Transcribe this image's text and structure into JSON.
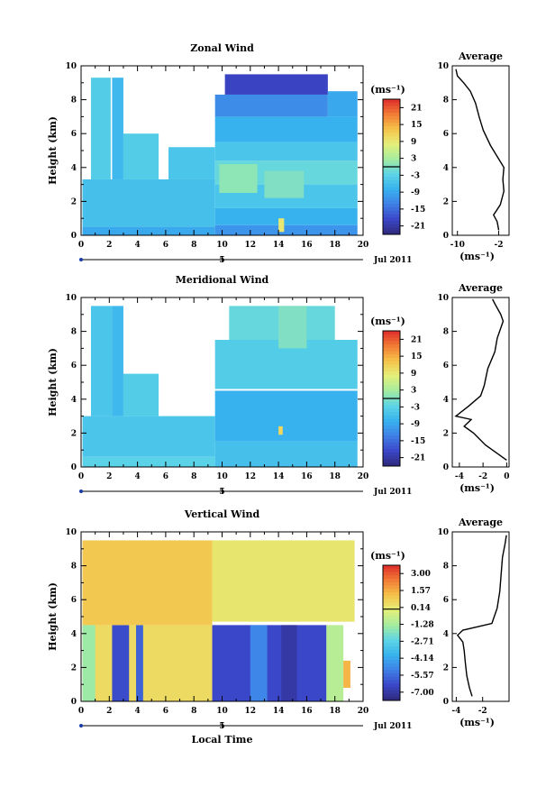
{
  "figure": {
    "panels": [
      {
        "title": "Zonal Wind",
        "ylabel": "Height (km)",
        "unit_label": "(ms⁻¹)",
        "colorbar_ticks": [
          "21",
          "15",
          "9",
          "3",
          "-3",
          "-9",
          "-15",
          "-21"
        ],
        "date_label": "Jul 2011",
        "date_tick": "5",
        "avg_title": "Average",
        "avg_unit": "(ms⁻¹)"
      },
      {
        "title": "Meridional Wind",
        "ylabel": "Height (km)",
        "unit_label": "(ms⁻¹)",
        "colorbar_ticks": [
          "21",
          "15",
          "9",
          "3",
          "-3",
          "-9",
          "-15",
          "-21"
        ],
        "date_label": "Jul 2011",
        "date_tick": "5",
        "avg_title": "Average",
        "avg_unit": "(ms⁻¹)"
      },
      {
        "title": "Vertical Wind",
        "ylabel": "Height (km)",
        "unit_label": "(ms⁻¹)",
        "colorbar_ticks": [
          "3.00",
          "1.57",
          "0.14",
          "-1.28",
          "-2.71",
          "-4.14",
          "-5.57",
          "-7.00"
        ],
        "date_label": "Jul 2011",
        "date_tick": "5",
        "avg_title": "Average",
        "avg_unit": "(ms⁻¹)",
        "xlabel": "Local Time"
      }
    ]
  },
  "chart_data": [
    {
      "type": "heatmap",
      "title": "Zonal Wind",
      "ylabel": "Height (km)",
      "xlim": [
        0,
        20
      ],
      "ylim": [
        0,
        10
      ],
      "xticks": [
        0,
        2,
        4,
        6,
        8,
        10,
        12,
        14,
        16,
        18,
        20
      ],
      "yticks": [
        0,
        2,
        4,
        6,
        8,
        10
      ],
      "colorbar_range": [
        -24,
        24
      ],
      "colorbar_ticks": [
        21,
        15,
        9,
        3,
        -3,
        -9,
        -15,
        -21
      ],
      "regions": [
        {
          "x": [
            0.1,
            9.5
          ],
          "y": [
            0,
            0.5
          ],
          "v": -9
        },
        {
          "x": [
            0.1,
            9.5
          ],
          "y": [
            0.5,
            3.3
          ],
          "v": -6
        },
        {
          "x": [
            2.2,
            3.0
          ],
          "y": [
            3.3,
            9.3
          ],
          "v": -7
        },
        {
          "x": [
            0.7,
            2.1
          ],
          "y": [
            3.3,
            9.3
          ],
          "v": -4
        },
        {
          "x": [
            3.0,
            5.5
          ],
          "y": [
            3.3,
            6.0
          ],
          "v": -4
        },
        {
          "x": [
            6.2,
            9.5
          ],
          "y": [
            3.3,
            5.2
          ],
          "v": -5
        },
        {
          "x": [
            9.5,
            19.6
          ],
          "y": [
            0,
            0.6
          ],
          "v": -11
        },
        {
          "x": [
            9.5,
            19.6
          ],
          "y": [
            0.6,
            1.6
          ],
          "v": -8
        },
        {
          "x": [
            9.5,
            19.6
          ],
          "y": [
            1.6,
            3.0
          ],
          "v": -5
        },
        {
          "x": [
            9.5,
            19.6
          ],
          "y": [
            3.0,
            4.4
          ],
          "v": -2
        },
        {
          "x": [
            9.5,
            19.6
          ],
          "y": [
            4.4,
            5.5
          ],
          "v": -5
        },
        {
          "x": [
            9.5,
            19.6
          ],
          "y": [
            5.5,
            7.0
          ],
          "v": -8
        },
        {
          "x": [
            9.5,
            17.5
          ],
          "y": [
            7.0,
            8.3
          ],
          "v": -12
        },
        {
          "x": [
            10.2,
            17.5
          ],
          "y": [
            8.3,
            9.5
          ],
          "v": -19
        },
        {
          "x": [
            17.5,
            19.6
          ],
          "y": [
            7.0,
            8.5
          ],
          "v": -9
        },
        {
          "x": [
            9.8,
            12.5
          ],
          "y": [
            2.5,
            4.2
          ],
          "v": 1
        },
        {
          "x": [
            13.0,
            15.8
          ],
          "y": [
            2.2,
            3.8
          ],
          "v": 0
        },
        {
          "x": [
            14.0,
            14.4
          ],
          "y": [
            0.2,
            1.0
          ],
          "v": 9
        }
      ],
      "average_profile": {
        "title": "Average",
        "xlabel": "(ms⁻¹)",
        "xlim": [
          -11,
          0
        ],
        "ylim": [
          0,
          10
        ],
        "xticks": [
          -10,
          -2
        ],
        "yticks": [
          0,
          2,
          4,
          6,
          8,
          10
        ],
        "x": [
          -2.0,
          -2.3,
          -3.0,
          -1.7,
          -1.0,
          -1.2,
          -1.0,
          -2.0,
          -3.6,
          -5.0,
          -5.8,
          -6.5,
          -7.5,
          -8.8,
          -10.0,
          -10.3
        ],
        "y": [
          0.3,
          0.8,
          1.2,
          1.8,
          2.6,
          3.3,
          4.0,
          4.5,
          5.3,
          6.2,
          7.0,
          7.8,
          8.5,
          9.0,
          9.4,
          9.8
        ]
      }
    },
    {
      "type": "heatmap",
      "title": "Meridional Wind",
      "ylabel": "Height (km)",
      "xlim": [
        0,
        20
      ],
      "ylim": [
        0,
        10
      ],
      "xticks": [
        0,
        2,
        4,
        6,
        8,
        10,
        12,
        14,
        16,
        18,
        20
      ],
      "yticks": [
        0,
        2,
        4,
        6,
        8,
        10
      ],
      "colorbar_range": [
        -24,
        24
      ],
      "colorbar_ticks": [
        21,
        15,
        9,
        3,
        -3,
        -9,
        -15,
        -21
      ],
      "regions": [
        {
          "x": [
            0.1,
            9.5
          ],
          "y": [
            0,
            0.6
          ],
          "v": -3
        },
        {
          "x": [
            0.1,
            9.5
          ],
          "y": [
            0.6,
            3.0
          ],
          "v": -5
        },
        {
          "x": [
            0.7,
            2.2
          ],
          "y": [
            3.0,
            9.5
          ],
          "v": -5
        },
        {
          "x": [
            2.2,
            3.0
          ],
          "y": [
            3.0,
            9.5
          ],
          "v": -7
        },
        {
          "x": [
            3.0,
            5.5
          ],
          "y": [
            3.0,
            5.5
          ],
          "v": -4
        },
        {
          "x": [
            9.5,
            19.6
          ],
          "y": [
            0,
            1.5
          ],
          "v": -6
        },
        {
          "x": [
            9.5,
            19.6
          ],
          "y": [
            1.5,
            4.5
          ],
          "v": -8
        },
        {
          "x": [
            9.5,
            19.6
          ],
          "y": [
            4.6,
            7.5
          ],
          "v": -4
        },
        {
          "x": [
            10.5,
            18.0
          ],
          "y": [
            7.5,
            9.5
          ],
          "v": -2
        },
        {
          "x": [
            14.0,
            16.0
          ],
          "y": [
            7.0,
            9.5
          ],
          "v": 0
        },
        {
          "x": [
            14.0,
            14.3
          ],
          "y": [
            1.9,
            2.4
          ],
          "v": 11
        }
      ],
      "average_profile": {
        "title": "Average",
        "xlabel": "(ms⁻¹)",
        "xlim": [
          -4.6,
          0.2
        ],
        "ylim": [
          0,
          10
        ],
        "xticks": [
          -4,
          -2,
          0
        ],
        "yticks": [
          0,
          2,
          4,
          6,
          8,
          10
        ],
        "x": [
          0.0,
          -0.8,
          -1.8,
          -2.8,
          -3.6,
          -3.0,
          -4.3,
          -3.2,
          -2.2,
          -1.9,
          -1.6,
          -1.0,
          -0.8,
          -0.5,
          -0.3,
          -0.5,
          -0.9,
          -1.2
        ],
        "y": [
          0.4,
          0.8,
          1.3,
          2.0,
          2.4,
          2.8,
          3.0,
          3.6,
          4.2,
          4.8,
          5.8,
          6.8,
          7.6,
          8.2,
          8.6,
          9.0,
          9.5,
          9.9
        ]
      }
    },
    {
      "type": "heatmap",
      "title": "Vertical Wind",
      "xlabel": "Local Time",
      "ylabel": "Height (km)",
      "xlim": [
        0,
        20
      ],
      "ylim": [
        0,
        10
      ],
      "xticks": [
        0,
        2,
        4,
        6,
        8,
        10,
        12,
        14,
        16,
        18,
        20
      ],
      "yticks": [
        0,
        2,
        4,
        6,
        8,
        10
      ],
      "colorbar_range": [
        -7.7,
        3.7
      ],
      "colorbar_ticks": [
        3.0,
        1.57,
        0.14,
        -1.28,
        -2.71,
        -4.14,
        -5.57,
        -7.0
      ],
      "regions": [
        {
          "x": [
            0.1,
            9.3
          ],
          "y": [
            0,
            4.5
          ],
          "v": 0.5
        },
        {
          "x": [
            0.1,
            1.0
          ],
          "y": [
            0,
            4.5
          ],
          "v": -1.5
        },
        {
          "x": [
            2.2,
            3.4
          ],
          "y": [
            0,
            4.5
          ],
          "v": -6.3
        },
        {
          "x": [
            3.9,
            4.4
          ],
          "y": [
            0,
            4.5
          ],
          "v": -5.8
        },
        {
          "x": [
            0.1,
            9.3
          ],
          "y": [
            4.5,
            9.5
          ],
          "v": 1.0
        },
        {
          "x": [
            9.3,
            17.4
          ],
          "y": [
            0,
            4.5
          ],
          "v": -6.4
        },
        {
          "x": [
            12.0,
            13.2
          ],
          "y": [
            0,
            4.5
          ],
          "v": -5.0
        },
        {
          "x": [
            14.2,
            15.3
          ],
          "y": [
            0,
            4.5
          ],
          "v": -7.0
        },
        {
          "x": [
            17.4,
            18.6
          ],
          "y": [
            0,
            4.5
          ],
          "v": -1.0
        },
        {
          "x": [
            18.6,
            19.1
          ],
          "y": [
            0.8,
            2.4
          ],
          "v": 1.4
        },
        {
          "x": [
            9.3,
            19.4
          ],
          "y": [
            4.7,
            9.5
          ],
          "v": 0.2
        }
      ],
      "average_profile": {
        "title": "Average",
        "xlabel": "(ms⁻¹)",
        "xlim": [
          -4.3,
          0.0
        ],
        "ylim": [
          0,
          10
        ],
        "xticks": [
          -4,
          -2
        ],
        "yticks": [
          0,
          2,
          4,
          6,
          8,
          10
        ],
        "x": [
          -2.8,
          -3.0,
          -3.2,
          -3.3,
          -3.4,
          -3.5,
          -3.9,
          -3.5,
          -2.4,
          -1.3,
          -0.9,
          -0.7,
          -0.6,
          -0.5,
          -0.3,
          -0.2
        ],
        "y": [
          0.3,
          0.8,
          1.5,
          2.2,
          3.0,
          3.5,
          3.9,
          4.2,
          4.4,
          4.6,
          5.5,
          6.5,
          7.5,
          8.5,
          9.3,
          9.8
        ]
      }
    }
  ]
}
